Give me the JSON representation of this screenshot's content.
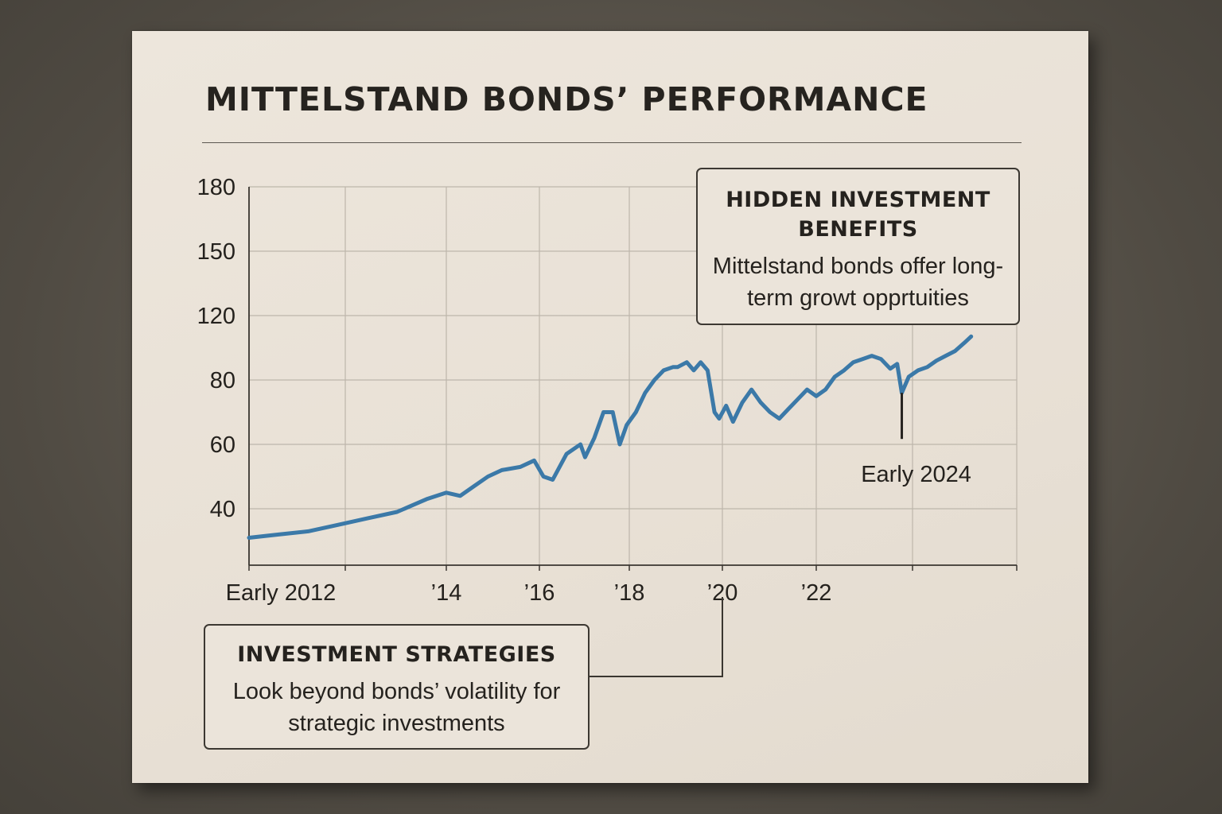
{
  "chart_data": {
    "type": "line",
    "title": "MITTELSTAND BONDS’ PERFORMANCE",
    "xlabel": "",
    "ylabel": "",
    "grid": true,
    "line_color": "#3b79a8",
    "y_ticks": [
      "180",
      "150",
      "120",
      "80",
      "60",
      "40"
    ],
    "x_ticks": [
      "Early 2012",
      "’14",
      "’16",
      "’18",
      "’20",
      "’22"
    ],
    "annotation": {
      "label": "Early 2024",
      "x": 2023.85,
      "y": 76
    },
    "series": [
      {
        "name": "Mittelstand bonds",
        "points": [
          [
            2012.0,
            31
          ],
          [
            2012.3,
            32
          ],
          [
            2012.6,
            33
          ],
          [
            2012.9,
            35
          ],
          [
            2013.2,
            37
          ],
          [
            2013.5,
            39
          ],
          [
            2013.8,
            43
          ],
          [
            2014.0,
            45
          ],
          [
            2014.3,
            44
          ],
          [
            2014.6,
            47
          ],
          [
            2014.9,
            50
          ],
          [
            2015.2,
            52
          ],
          [
            2015.6,
            53
          ],
          [
            2015.9,
            55
          ],
          [
            2016.1,
            50
          ],
          [
            2016.3,
            49
          ],
          [
            2016.6,
            57
          ],
          [
            2016.9,
            60
          ],
          [
            2017.0,
            56
          ],
          [
            2017.2,
            62
          ],
          [
            2017.4,
            70
          ],
          [
            2017.6,
            70
          ],
          [
            2017.75,
            60
          ],
          [
            2017.9,
            66
          ],
          [
            2018.1,
            70
          ],
          [
            2018.3,
            76
          ],
          [
            2018.5,
            80
          ],
          [
            2018.7,
            86
          ],
          [
            2018.9,
            88
          ],
          [
            2019.0,
            88
          ],
          [
            2019.2,
            91
          ],
          [
            2019.35,
            86
          ],
          [
            2019.5,
            91
          ],
          [
            2019.65,
            86
          ],
          [
            2019.8,
            70
          ],
          [
            2019.9,
            68
          ],
          [
            2020.05,
            72
          ],
          [
            2020.2,
            67
          ],
          [
            2020.4,
            73
          ],
          [
            2020.6,
            77
          ],
          [
            2020.8,
            73
          ],
          [
            2021.0,
            70
          ],
          [
            2021.2,
            68
          ],
          [
            2021.4,
            71
          ],
          [
            2021.6,
            74
          ],
          [
            2021.8,
            77
          ],
          [
            2022.0,
            75
          ],
          [
            2022.2,
            77
          ],
          [
            2022.4,
            82
          ],
          [
            2022.6,
            86
          ],
          [
            2022.8,
            91
          ],
          [
            2023.0,
            93
          ],
          [
            2023.2,
            95
          ],
          [
            2023.4,
            93
          ],
          [
            2023.6,
            87
          ],
          [
            2023.75,
            90
          ],
          [
            2023.85,
            76
          ],
          [
            2024.0,
            82
          ],
          [
            2024.2,
            86
          ],
          [
            2024.4,
            88
          ],
          [
            2024.6,
            92
          ],
          [
            2024.8,
            95
          ],
          [
            2025.0,
            98
          ],
          [
            2025.2,
            103
          ],
          [
            2025.35,
            107
          ]
        ]
      }
    ],
    "callouts": [
      {
        "heading": "HIDDEN INVESTMENT BENEFITS",
        "body": "Mittelstand bonds offer long-term growt opprtuities"
      },
      {
        "heading": "INVESTMENT STRATEGIES",
        "body": "Look beyond bonds’ volatility for strategic investments"
      }
    ]
  }
}
